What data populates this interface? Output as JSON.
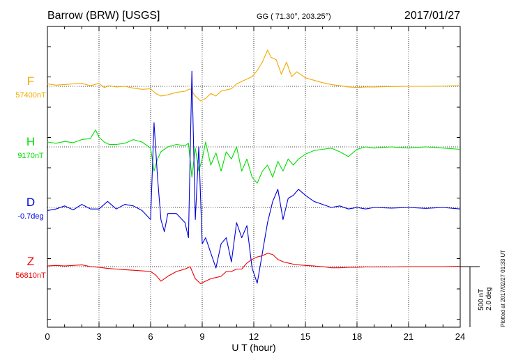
{
  "header": {
    "station": "Barrow (BRW)  [USGS]",
    "coords": "GG ( 71.30°, 203.25°)",
    "date": "2017/01/27"
  },
  "footer": {
    "plotted": "Plotted at 2017/02/27 01:33 UT"
  },
  "colors": {
    "F": "#f2a900",
    "H": "#00e000",
    "D": "#0000dd",
    "Z": "#ee0000",
    "grid": "#000000"
  },
  "chart_data": {
    "type": "line",
    "xlabel": "U T (hour)",
    "xlim": [
      0,
      24
    ],
    "xticks": [
      "0",
      "3",
      "6",
      "9",
      "12",
      "15",
      "18",
      "21",
      "24"
    ],
    "scale_bar": {
      "value_label": "500 nT",
      "angle_label": "2.0 deg"
    },
    "series": [
      {
        "name": "F",
        "baseline_label": "57400nT",
        "unit": "nT",
        "baseline": 57400,
        "x": [
          0,
          0.5,
          1,
          1.5,
          2,
          2.5,
          3,
          3.3,
          3.6,
          4,
          4.5,
          5,
          5.5,
          6,
          6.3,
          6.6,
          7,
          7.5,
          8,
          8.3,
          8.6,
          8.9,
          9.2,
          9.5,
          9.8,
          10.1,
          10.4,
          10.7,
          11,
          11.3,
          11.6,
          11.9,
          12.2,
          12.5,
          12.8,
          13,
          13.3,
          13.6,
          13.9,
          14.2,
          14.5,
          15,
          15.5,
          16,
          16.5,
          17,
          17.5,
          18,
          18.5,
          19,
          20,
          21,
          22,
          23,
          24
        ],
        "y": [
          20,
          10,
          15,
          20,
          25,
          5,
          25,
          -10,
          5,
          -5,
          0,
          -15,
          -25,
          -20,
          -60,
          -80,
          -70,
          -50,
          -40,
          -20,
          -80,
          -120,
          -100,
          -60,
          -80,
          -40,
          -30,
          -20,
          20,
          40,
          60,
          80,
          130,
          200,
          300,
          240,
          220,
          100,
          200,
          80,
          120,
          70,
          50,
          30,
          15,
          5,
          -5,
          -10,
          -5,
          -5,
          -2,
          0,
          0,
          2,
          5
        ]
      },
      {
        "name": "H",
        "baseline_label": "9170nT",
        "unit": "nT",
        "baseline": 9170,
        "x": [
          0,
          0.5,
          1,
          1.5,
          2,
          2.5,
          2.8,
          3,
          3.3,
          3.6,
          4,
          4.5,
          5,
          5.5,
          6,
          6.2,
          6.4,
          6.6,
          6.8,
          7,
          7.5,
          8,
          8.2,
          8.4,
          8.6,
          8.8,
          9,
          9.2,
          9.5,
          9.8,
          10.1,
          10.4,
          10.7,
          11,
          11.3,
          11.6,
          11.9,
          12.2,
          12.5,
          12.8,
          13.1,
          13.4,
          13.7,
          14,
          14.3,
          14.6,
          15,
          15.5,
          16,
          16.5,
          17,
          17.5,
          18,
          18.5,
          19,
          20,
          21,
          22,
          23,
          24
        ],
        "y": [
          40,
          30,
          45,
          35,
          60,
          70,
          140,
          80,
          40,
          20,
          20,
          30,
          60,
          40,
          -10,
          -200,
          -100,
          -40,
          -20,
          0,
          20,
          10,
          30,
          -250,
          -10,
          -200,
          -100,
          40,
          -150,
          -50,
          -200,
          -40,
          -100,
          0,
          -200,
          -100,
          -250,
          -300,
          -200,
          -150,
          -250,
          -120,
          -200,
          -100,
          -150,
          -100,
          -60,
          -30,
          -20,
          -10,
          -40,
          -80,
          -20,
          0,
          -10,
          0,
          -10,
          0,
          -10,
          -20
        ]
      },
      {
        "name": "D",
        "baseline_label": "-0.7deg",
        "unit": "deg",
        "baseline": -0.7,
        "x": [
          0,
          0.5,
          1,
          1.5,
          2,
          2.5,
          3,
          3.5,
          4,
          4.5,
          5,
          5.5,
          6,
          6.2,
          6.4,
          6.6,
          6.8,
          7,
          7.5,
          8,
          8.2,
          8.4,
          8.6,
          8.8,
          9,
          9.2,
          9.5,
          9.8,
          10.1,
          10.4,
          10.7,
          11,
          11.3,
          11.6,
          11.9,
          12.2,
          12.5,
          12.8,
          13.1,
          13.4,
          13.7,
          14,
          14.3,
          14.6,
          15,
          15.5,
          16,
          16.5,
          17,
          17.5,
          18,
          18.5,
          19,
          20,
          21,
          22,
          23,
          24
        ],
        "y": [
          -10,
          -5,
          5,
          -8,
          10,
          -5,
          -5,
          20,
          -5,
          10,
          5,
          -10,
          -40,
          280,
          100,
          -40,
          -80,
          -20,
          -20,
          -50,
          -100,
          450,
          -40,
          200,
          -120,
          -100,
          -150,
          -200,
          -120,
          -100,
          -180,
          -50,
          -100,
          -60,
          -200,
          -250,
          -150,
          -50,
          20,
          60,
          -40,
          30,
          40,
          60,
          40,
          20,
          10,
          0,
          5,
          -5,
          0,
          -5,
          0,
          -2,
          0,
          -3,
          0,
          -5
        ]
      },
      {
        "name": "Z",
        "baseline_label": "56810nT",
        "unit": "nT",
        "baseline": 56810,
        "x": [
          0,
          0.5,
          1,
          1.5,
          2,
          2.5,
          3,
          3.5,
          4,
          4.5,
          5,
          5.5,
          6,
          6.3,
          6.6,
          7,
          7.5,
          8,
          8.3,
          8.6,
          8.9,
          9.2,
          9.5,
          9.8,
          10.1,
          10.4,
          10.7,
          11,
          11.3,
          11.6,
          11.9,
          12.2,
          12.5,
          12.8,
          13.1,
          13.4,
          13.7,
          14,
          14.3,
          14.6,
          15,
          15.5,
          16,
          16.5,
          17,
          17.5,
          18,
          18.5,
          19,
          20,
          21,
          22,
          23,
          24
        ],
        "y": [
          5,
          10,
          5,
          10,
          15,
          0,
          -5,
          -15,
          -20,
          -25,
          -30,
          -35,
          -40,
          -70,
          -120,
          -80,
          -40,
          -20,
          0,
          -100,
          -140,
          -120,
          -100,
          -90,
          -80,
          -40,
          -40,
          -20,
          -20,
          30,
          60,
          80,
          90,
          110,
          100,
          60,
          40,
          30,
          20,
          15,
          10,
          5,
          0,
          -10,
          -10,
          -5,
          -5,
          -3,
          -3,
          -3,
          0,
          0,
          0,
          3
        ]
      }
    ]
  }
}
